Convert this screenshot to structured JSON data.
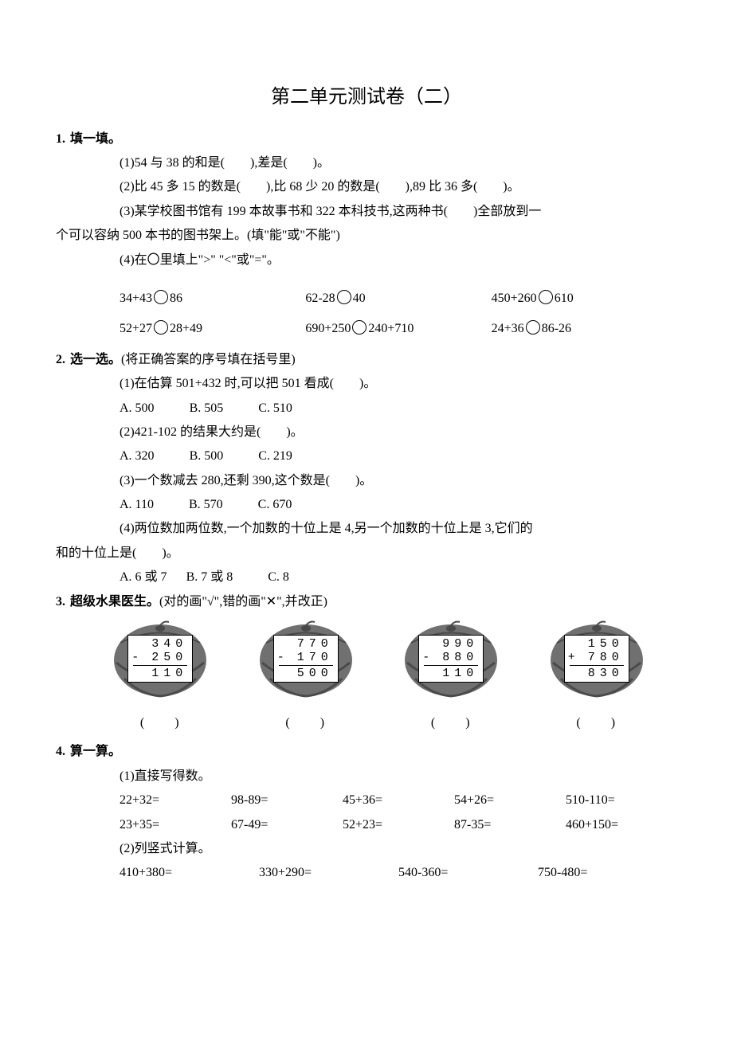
{
  "title": "第二单元测试卷（二）",
  "q1": {
    "num": "1.",
    "head": "填一填。",
    "i1": "(1)54 与 38 的和是(　　),差是(　　)。",
    "i2": "(2)比 45 多 15 的数是(　　),比 68 少 20 的数是(　　),89 比 36 多(　　)。",
    "i3a": "(3)某学校图书馆有 199 本故事书和 322 本科技书,这两种书(　　)全部放到一",
    "i3b": "个可以容纳 500 本书的图书架上。(填\"能\"或\"不能\")",
    "i4": "(4)在〇里填上\">\" \"<\"或\"=\"。",
    "row1": {
      "a": "34+43",
      "b": "86",
      "c": "62-28",
      "d": "40",
      "e": "450+260",
      "f": "610"
    },
    "row2": {
      "a": "52+27",
      "b": "28+49",
      "c": "690+250",
      "d": "240+710",
      "e": "24+36",
      "f": "86-26"
    }
  },
  "q2": {
    "num": "2.",
    "head": "选一选。",
    "tail": "(将正确答案的序号填在括号里)",
    "i1": "(1)在估算 501+432 时,可以把 501 看成(　　)。",
    "o1": {
      "a": "A. 500",
      "b": "B. 505",
      "c": "C. 510"
    },
    "i2": "(2)421-102 的结果大约是(　　)。",
    "o2": {
      "a": "A. 320",
      "b": "B. 500",
      "c": "C. 219"
    },
    "i3": "(3)一个数减去 280,还剩 390,这个数是(　　)。",
    "o3": {
      "a": "A. 110",
      "b": "B. 570",
      "c": "C. 670"
    },
    "i4a": "(4)两位数加两位数,一个加数的十位上是 4,另一个加数的十位上是 3,它们的",
    "i4b": "和的十位上是(　　)。",
    "o4": {
      "a": "A. 6 或 7",
      "b": "B. 7 或 8",
      "c": "C. 8"
    }
  },
  "q3": {
    "num": "3.",
    "head": "超级水果医生。",
    "tail": "(对的画\"√\",错的画\"✕\",并改正)",
    "fruits": [
      {
        "l1": "340",
        "op": "-",
        "l2": "250",
        "l3": "110"
      },
      {
        "l1": "770",
        "op": "-",
        "l2": "170",
        "l3": "500"
      },
      {
        "l1": "990",
        "op": "-",
        "l2": "880",
        "l3": "110"
      },
      {
        "l1": "150",
        "op": "+",
        "l2": "780",
        "l3": "830"
      }
    ],
    "paren": "(　　)"
  },
  "q4": {
    "num": "4.",
    "head": "算一算。",
    "s1": "(1)直接写得数。",
    "r1": {
      "a": "22+32=",
      "b": "98-89=",
      "c": "45+36=",
      "d": "54+26=",
      "e": "510-110="
    },
    "r2": {
      "a": "23+35=",
      "b": "67-49=",
      "c": "52+23=",
      "d": "87-35=",
      "e": "460+150="
    },
    "s2": "(2)列竖式计算。",
    "r3": {
      "a": "410+380=",
      "b": "330+290=",
      "c": "540-360=",
      "d": "750-480="
    }
  },
  "colors": {
    "text": "#000000",
    "bg": "#ffffff",
    "melon_fill": "#888888",
    "melon_dark": "#555555"
  }
}
